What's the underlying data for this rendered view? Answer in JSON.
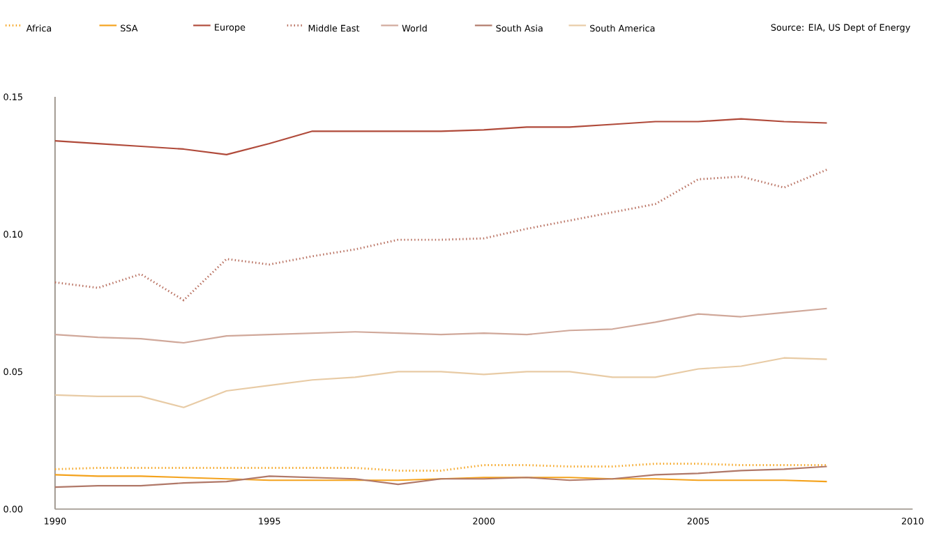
{
  "chart_data": {
    "type": "line",
    "x": [
      1990,
      1991,
      1992,
      1993,
      1994,
      1995,
      1996,
      1997,
      1998,
      1999,
      2000,
      2001,
      2002,
      2003,
      2004,
      2005,
      2006,
      2007,
      2008
    ],
    "series": [
      {
        "name": "Africa",
        "color": "#f5a623",
        "line_style": "dotted",
        "values": [
          0.0145,
          0.015,
          0.015,
          0.015,
          0.015,
          0.015,
          0.015,
          0.015,
          0.014,
          0.014,
          0.016,
          0.016,
          0.0155,
          0.0155,
          0.0165,
          0.0165,
          0.016,
          0.016,
          0.016
        ]
      },
      {
        "name": "SSA",
        "color": "#f4a21c",
        "line_style": "solid",
        "values": [
          0.0125,
          0.012,
          0.012,
          0.0115,
          0.011,
          0.0105,
          0.0105,
          0.0105,
          0.0105,
          0.011,
          0.0115,
          0.0115,
          0.0115,
          0.011,
          0.011,
          0.0105,
          0.0105,
          0.0105,
          0.01
        ]
      },
      {
        "name": "Europe",
        "color": "#b04a3a",
        "line_style": "solid",
        "values": [
          0.134,
          0.133,
          0.132,
          0.131,
          0.129,
          0.133,
          0.1375,
          0.1375,
          0.1375,
          0.1375,
          0.138,
          0.139,
          0.139,
          0.14,
          0.141,
          0.141,
          0.142,
          0.141,
          0.1405
        ]
      },
      {
        "name": "Middle East",
        "color": "#b87060",
        "line_style": "dotted",
        "values": [
          0.0825,
          0.0805,
          0.0855,
          0.076,
          0.091,
          0.089,
          0.092,
          0.0945,
          0.098,
          0.098,
          0.0985,
          0.102,
          0.105,
          0.108,
          0.111,
          0.12,
          0.121,
          0.117,
          0.1235
        ]
      },
      {
        "name": "World",
        "color": "#d0a89a",
        "line_style": "solid",
        "values": [
          0.0635,
          0.0625,
          0.062,
          0.0605,
          0.063,
          0.0635,
          0.064,
          0.0645,
          0.064,
          0.0635,
          0.064,
          0.0635,
          0.065,
          0.0655,
          0.068,
          0.071,
          0.07,
          0.0715,
          0.073
        ]
      },
      {
        "name": "South Asia",
        "color": "#b07868",
        "line_style": "solid",
        "values": [
          0.008,
          0.0085,
          0.0085,
          0.0095,
          0.01,
          0.012,
          0.0115,
          0.011,
          0.009,
          0.011,
          0.011,
          0.0115,
          0.0105,
          0.011,
          0.0125,
          0.013,
          0.014,
          0.0145,
          0.0155
        ]
      },
      {
        "name": "South America",
        "color": "#e8cba5",
        "line_style": "solid",
        "values": [
          0.0415,
          0.041,
          0.041,
          0.037,
          0.043,
          0.045,
          0.047,
          0.048,
          0.05,
          0.05,
          0.049,
          0.05,
          0.05,
          0.048,
          0.048,
          0.051,
          0.052,
          0.055,
          0.0545
        ]
      }
    ],
    "xlim": [
      1990,
      2010
    ],
    "xticks": [
      1990,
      1995,
      2000,
      2005,
      2010
    ],
    "ylim": [
      0,
      0.15
    ],
    "yticks": [
      {
        "value": 0,
        "label": "0.00"
      },
      {
        "value": 0.05,
        "label": "0.05"
      },
      {
        "value": 0.1,
        "label": "0.10"
      },
      {
        "value": 0.15,
        "label": "0.15"
      }
    ],
    "grid": false,
    "legend": "top",
    "marker": "none",
    "annotations": [
      "Source: EIA, US Dept of Energy"
    ]
  }
}
